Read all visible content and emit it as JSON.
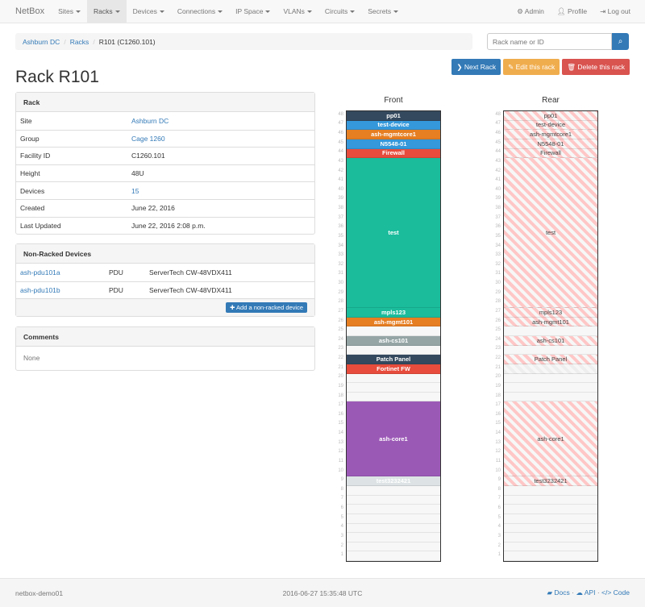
{
  "nav": {
    "brand": "NetBox",
    "items": [
      {
        "label": "Sites",
        "active": false
      },
      {
        "label": "Racks",
        "active": true
      },
      {
        "label": "Devices"
      },
      {
        "label": "Connections"
      },
      {
        "label": "IP Space"
      },
      {
        "label": "VLANs"
      },
      {
        "label": "Circuits"
      },
      {
        "label": "Secrets"
      }
    ],
    "admin": "Admin",
    "profile": "Profile",
    "logout": "Log out"
  },
  "breadcrumb": [
    "Ashburn DC",
    "Racks",
    "R101 (C1260.101)"
  ],
  "search": {
    "placeholder": "Rack name or ID"
  },
  "actions": {
    "next": "Next Rack",
    "edit": "Edit this rack",
    "delete": "Delete this rack",
    "colors": {
      "next": "#337ab7",
      "edit": "#f0ad4e",
      "delete": "#d9534f"
    }
  },
  "title": "Rack R101",
  "rack_panel": {
    "heading": "Rack",
    "rows": [
      {
        "k": "Site",
        "v": "Ashburn DC",
        "link": true
      },
      {
        "k": "Group",
        "v": "Cage 1260",
        "link": true
      },
      {
        "k": "Facility ID",
        "v": "C1260.101"
      },
      {
        "k": "Height",
        "v": "48U"
      },
      {
        "k": "Devices",
        "v": "15",
        "link": true
      },
      {
        "k": "Created",
        "v": "June 22, 2016"
      },
      {
        "k": "Last Updated",
        "v": "June 22, 2016 2:08 p.m."
      }
    ]
  },
  "nonracked": {
    "heading": "Non-Racked Devices",
    "rows": [
      {
        "name": "ash-pdu101a",
        "role": "PDU",
        "type": "ServerTech CW-48VDX411"
      },
      {
        "name": "ash-pdu101b",
        "role": "PDU",
        "type": "ServerTech CW-48VDX411"
      }
    ],
    "add": "Add a non-racked device"
  },
  "comments": {
    "heading": "Comments",
    "text": "None"
  },
  "elevation": {
    "front_label": "Front",
    "rear_label": "Rear",
    "height": 48,
    "devices": [
      {
        "name": "pp01",
        "top": 48,
        "u": 1,
        "color": "#34495e"
      },
      {
        "name": "test-device",
        "top": 47,
        "u": 1,
        "color": "#3498db"
      },
      {
        "name": "ash-mgmtcore1",
        "top": 46,
        "u": 1,
        "color": "#e67e22"
      },
      {
        "name": "N5548-01",
        "top": 45,
        "u": 1,
        "color": "#3498db"
      },
      {
        "name": "Firewall",
        "top": 44,
        "u": 1,
        "color": "#e74c3c"
      },
      {
        "name": "test",
        "top": 43,
        "u": 16,
        "color": "#1abc9c"
      },
      {
        "name": "mpls123",
        "top": 27,
        "u": 1,
        "color": "#1abc9c"
      },
      {
        "name": "ash-mgmt101",
        "top": 26,
        "u": 1,
        "color": "#e67e22"
      },
      {
        "name": "ash-cs101",
        "top": 24,
        "u": 1,
        "color": "#95a5a6"
      },
      {
        "name": "Patch Panel",
        "top": 22,
        "u": 1,
        "color": "#34495e"
      },
      {
        "name": "Fortinet FW",
        "top": 21,
        "u": 1,
        "color": "#e74c3c",
        "rear_reserved": true
      },
      {
        "name": "ash-core1",
        "top": 17,
        "u": 8,
        "color": "#9b59b6"
      },
      {
        "name": "test3232421",
        "top": 9,
        "u": 1,
        "color": "#dde3e5"
      }
    ]
  },
  "footer": {
    "host": "netbox-demo01",
    "time": "2016-06-27 15:35:48 UTC",
    "docs": "Docs",
    "api": "API",
    "code": "Code"
  }
}
